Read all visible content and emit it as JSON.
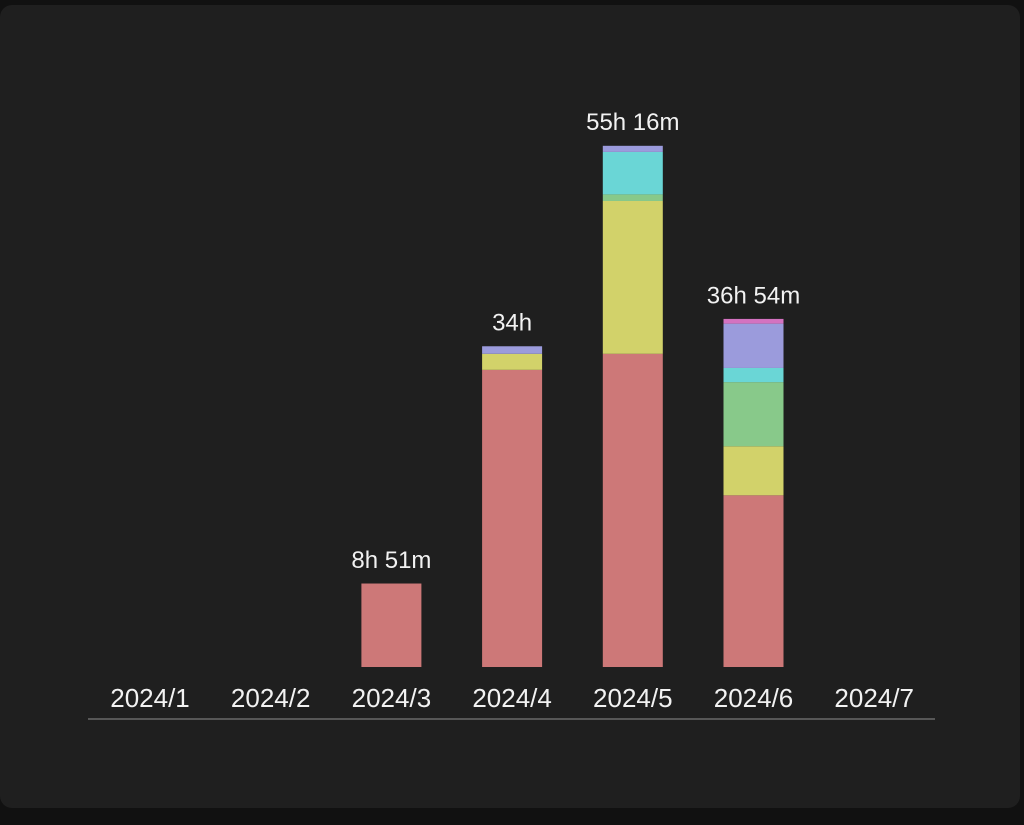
{
  "chart_data": {
    "type": "stacked-bar",
    "categories": [
      "2024/1",
      "2024/2",
      "2024/3",
      "2024/4",
      "2024/5",
      "2024/6",
      "2024/7"
    ],
    "series": [
      {
        "color": "#cd7878",
        "values": [
          null,
          null,
          8.85,
          31.5,
          33.2,
          18.2,
          null
        ]
      },
      {
        "color": "#d2d26a",
        "values": [
          null,
          null,
          null,
          1.7,
          16.2,
          5.2,
          null
        ]
      },
      {
        "color": "#88c98a",
        "values": [
          null,
          null,
          null,
          null,
          0.7,
          6.8,
          null
        ]
      },
      {
        "color": "#6ad6d6",
        "values": [
          null,
          null,
          null,
          null,
          4.5,
          1.5,
          null
        ]
      },
      {
        "color": "#9b9bdc",
        "values": [
          null,
          null,
          null,
          0.8,
          0.65,
          4.7,
          null
        ]
      },
      {
        "color": "#d472c0",
        "values": [
          null,
          null,
          null,
          null,
          null,
          0.5,
          null
        ]
      }
    ],
    "totals": [
      null,
      null,
      8.85,
      34,
      55.2667,
      36.9,
      null
    ],
    "total_labels": [
      null,
      null,
      "8h 51m",
      "34h",
      "55h 16m",
      "36h 54m",
      null
    ],
    "ylim": [
      0,
      60
    ]
  }
}
